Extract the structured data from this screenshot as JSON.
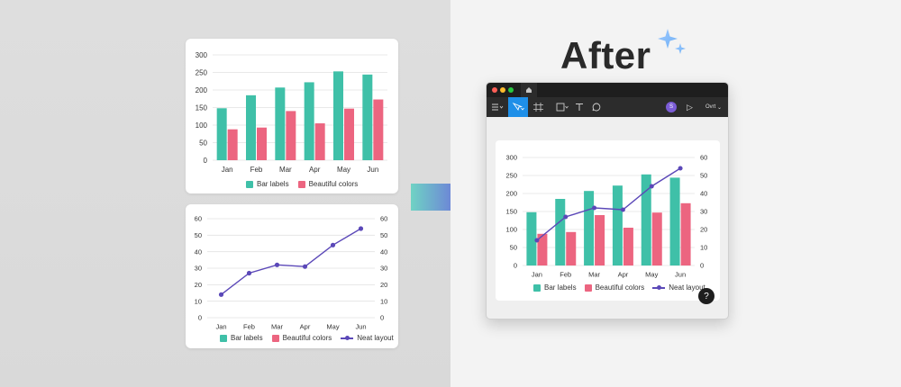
{
  "heading": "After",
  "colors": {
    "teal": "#3fc0a8",
    "pink": "#ec6580",
    "purple": "#5b48b8",
    "grid": "#e2e2e2",
    "arrow_from": "#6fd3c4",
    "arrow_to": "#6b3ee8"
  },
  "icons": [
    "sparkle-icon",
    "arrow-right-icon",
    "home-icon",
    "menu-icon",
    "move-icon",
    "frame-icon",
    "rectangle-icon",
    "text-icon",
    "comment-icon",
    "play-icon",
    "help-icon"
  ],
  "toolbar": {
    "avatar": "S",
    "play": "▷",
    "zoom_label": "Ovrt",
    "help": "?"
  },
  "legend": {
    "bar_labels": "Bar labels",
    "beautiful_colors": "Beautiful colors",
    "neat_layout": "Neat layout"
  },
  "chart_data": [
    {
      "type": "bar",
      "categories": [
        "Jan",
        "Feb",
        "Mar",
        "Apr",
        "May",
        "Jun"
      ],
      "series": [
        {
          "name": "Bar labels",
          "values": [
            148,
            185,
            207,
            222,
            253,
            244
          ]
        },
        {
          "name": "Beautiful colors",
          "values": [
            88,
            93,
            140,
            105,
            147,
            173
          ]
        }
      ],
      "ylim": [
        0,
        300
      ],
      "yticks": [
        0,
        50,
        100,
        150,
        200,
        250,
        300
      ],
      "grid": true,
      "legend_placement": "bottom"
    },
    {
      "type": "line",
      "categories": [
        "Jan",
        "Feb",
        "Mar",
        "Apr",
        "May",
        "Jun"
      ],
      "series": [
        {
          "name": "Neat layout",
          "values": [
            14,
            27,
            32,
            31,
            44,
            54
          ]
        }
      ],
      "ylim": [
        0,
        60
      ],
      "yticks": [
        0,
        10,
        20,
        30,
        40,
        50,
        60
      ],
      "legend_entries": [
        "Bar labels",
        "Beautiful colors",
        "Neat layout"
      ],
      "grid": true,
      "legend_placement": "bottom"
    },
    {
      "type": "bar",
      "categories": [
        "Jan",
        "Feb",
        "Mar",
        "Apr",
        "May",
        "Jun"
      ],
      "series": [
        {
          "name": "Bar labels",
          "values": [
            148,
            185,
            207,
            222,
            253,
            244
          ]
        },
        {
          "name": "Beautiful colors",
          "values": [
            88,
            93,
            140,
            105,
            147,
            173
          ]
        },
        {
          "name": "Neat layout",
          "type": "line",
          "axis": "right",
          "values": [
            14,
            27,
            32,
            31,
            44,
            54
          ]
        }
      ],
      "ylim": [
        0,
        300
      ],
      "yticks": [
        0,
        50,
        100,
        150,
        200,
        250,
        300
      ],
      "y2lim": [
        0,
        60
      ],
      "y2ticks": [
        0,
        10,
        20,
        30,
        40,
        50,
        60
      ],
      "grid": true,
      "legend_placement": "bottom"
    }
  ]
}
